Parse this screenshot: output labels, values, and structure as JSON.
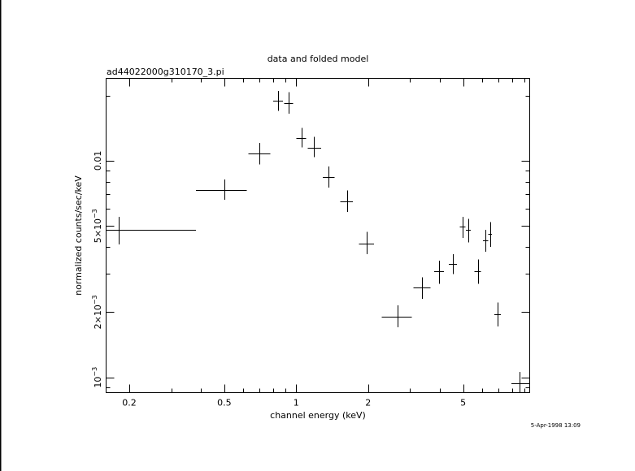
{
  "chart_data": {
    "type": "scatter",
    "title": "data and folded model",
    "subtitle": "ad44022000g310170_3.pi",
    "xlabel": "channel energy (keV)",
    "ylabel": "normalized counts/sec/keV",
    "timestamp": "5-Apr-1998 13:09",
    "x_scale": "log",
    "y_scale": "log",
    "xlim": [
      0.16,
      9.5
    ],
    "ylim": [
      0.00085,
      0.024
    ],
    "x_ticks": [
      {
        "value": 0.2,
        "label": "0.2"
      },
      {
        "value": 0.5,
        "label": "0.5"
      },
      {
        "value": 1,
        "label": "1"
      },
      {
        "value": 2,
        "label": "2"
      },
      {
        "value": 5,
        "label": "5"
      }
    ],
    "y_ticks": [
      {
        "value": 0.001,
        "label": "10",
        "exp": "−3"
      },
      {
        "value": 0.002,
        "label": "2×10",
        "exp": "−3"
      },
      {
        "value": 0.005,
        "label": "5×10",
        "exp": "−3"
      },
      {
        "value": 0.01,
        "label": "0.01",
        "exp": ""
      }
    ],
    "points": [
      {
        "x": 0.18,
        "xlo": 0.16,
        "xhi": 0.38,
        "y": 0.00478,
        "ylo": 0.0041,
        "yhi": 0.0055
      },
      {
        "x": 0.5,
        "xlo": 0.38,
        "xhi": 0.62,
        "y": 0.00733,
        "ylo": 0.0066,
        "yhi": 0.0082
      },
      {
        "x": 0.7,
        "xlo": 0.63,
        "xhi": 0.78,
        "y": 0.0108,
        "ylo": 0.0096,
        "yhi": 0.0121
      },
      {
        "x": 0.84,
        "xlo": 0.8,
        "xhi": 0.88,
        "y": 0.0189,
        "ylo": 0.017,
        "yhi": 0.021
      },
      {
        "x": 0.93,
        "xlo": 0.89,
        "xhi": 0.97,
        "y": 0.0185,
        "ylo": 0.0165,
        "yhi": 0.0207
      },
      {
        "x": 1.05,
        "xlo": 1.0,
        "xhi": 1.1,
        "y": 0.0127,
        "ylo": 0.0115,
        "yhi": 0.0142
      },
      {
        "x": 1.19,
        "xlo": 1.12,
        "xhi": 1.27,
        "y": 0.0115,
        "ylo": 0.0104,
        "yhi": 0.0129
      },
      {
        "x": 1.37,
        "xlo": 1.29,
        "xhi": 1.45,
        "y": 0.00843,
        "ylo": 0.0075,
        "yhi": 0.0094
      },
      {
        "x": 1.63,
        "xlo": 1.53,
        "xhi": 1.73,
        "y": 0.00649,
        "ylo": 0.0058,
        "yhi": 0.0073
      },
      {
        "x": 1.97,
        "xlo": 1.83,
        "xhi": 2.12,
        "y": 0.00415,
        "ylo": 0.0037,
        "yhi": 0.0047
      },
      {
        "x": 2.66,
        "xlo": 2.28,
        "xhi": 3.05,
        "y": 0.00191,
        "ylo": 0.0017,
        "yhi": 0.00215
      },
      {
        "x": 3.36,
        "xlo": 3.1,
        "xhi": 3.65,
        "y": 0.00261,
        "ylo": 0.0023,
        "yhi": 0.0029
      },
      {
        "x": 3.97,
        "xlo": 3.78,
        "xhi": 4.16,
        "y": 0.00308,
        "ylo": 0.0027,
        "yhi": 0.00345
      },
      {
        "x": 4.53,
        "xlo": 4.35,
        "xhi": 4.71,
        "y": 0.00335,
        "ylo": 0.003,
        "yhi": 0.0037
      },
      {
        "x": 4.98,
        "xlo": 4.84,
        "xhi": 5.12,
        "y": 0.00495,
        "ylo": 0.0044,
        "yhi": 0.0055
      },
      {
        "x": 5.26,
        "xlo": 5.14,
        "xhi": 5.38,
        "y": 0.00478,
        "ylo": 0.0042,
        "yhi": 0.0054
      },
      {
        "x": 5.76,
        "xlo": 5.58,
        "xhi": 5.94,
        "y": 0.00308,
        "ylo": 0.0027,
        "yhi": 0.0035
      },
      {
        "x": 6.2,
        "xlo": 6.05,
        "xhi": 6.36,
        "y": 0.00428,
        "ylo": 0.0038,
        "yhi": 0.0048
      },
      {
        "x": 6.48,
        "xlo": 6.37,
        "xhi": 6.6,
        "y": 0.00458,
        "ylo": 0.004,
        "yhi": 0.0052
      },
      {
        "x": 6.96,
        "xlo": 6.76,
        "xhi": 7.18,
        "y": 0.00196,
        "ylo": 0.00172,
        "yhi": 0.00222
      },
      {
        "x": 8.62,
        "xlo": 7.95,
        "xhi": 9.5,
        "y": 0.000936,
        "ylo": 0.00083,
        "yhi": 0.00106
      }
    ]
  }
}
